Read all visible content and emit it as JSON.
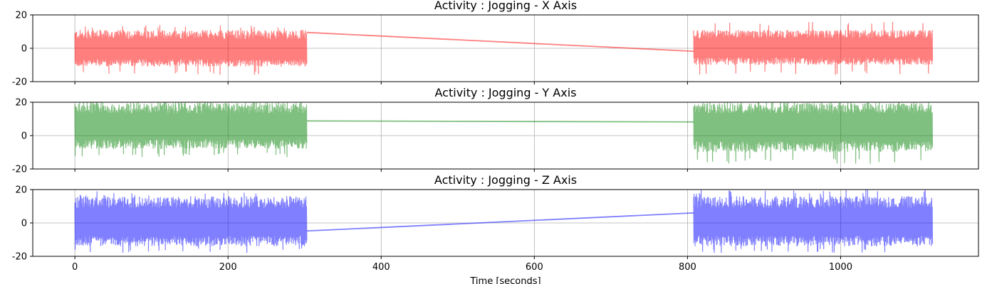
{
  "chart_data": [
    {
      "type": "line",
      "title": "Activity : Jogging - X Axis",
      "color": "#ff0000",
      "alpha": 0.5,
      "xlim": [
        -55,
        1180
      ],
      "ylim": [
        -20,
        20
      ],
      "yticks": [
        -20,
        0,
        20
      ],
      "xticks": [
        0,
        200,
        400,
        600,
        800,
        1000
      ],
      "grid": true,
      "segments": [
        {
          "x_start": 0,
          "x_end": 303,
          "center": -1,
          "upper_envelope": 11,
          "lower_envelope": -11,
          "upper_peak": 14,
          "lower_peak": -16
        },
        {
          "x_start": 808,
          "x_end": 1120,
          "center": 0,
          "upper_envelope": 11,
          "lower_envelope": -10,
          "upper_peak": 16,
          "lower_peak": -16
        }
      ],
      "connector": {
        "x": [
          303,
          808
        ],
        "y": [
          9.5,
          -1.8
        ]
      }
    },
    {
      "type": "line",
      "title": "Activity : Jogging - Y Axis",
      "color": "#008000",
      "alpha": 0.5,
      "xlim": [
        -55,
        1180
      ],
      "ylim": [
        -20,
        20
      ],
      "yticks": [
        -20,
        0,
        20
      ],
      "xticks": [
        0,
        200,
        400,
        600,
        800,
        1000
      ],
      "grid": true,
      "segments": [
        {
          "x_start": 0,
          "x_end": 303,
          "center": 5,
          "upper_envelope": 20,
          "lower_envelope": -8,
          "upper_peak": 20,
          "lower_peak": -13
        },
        {
          "x_start": 808,
          "x_end": 1120,
          "center": 5,
          "upper_envelope": 20,
          "lower_envelope": -10,
          "upper_peak": 20,
          "lower_peak": -17
        }
      ],
      "connector": {
        "x": [
          303,
          808
        ],
        "y": [
          8.8,
          8.2
        ]
      }
    },
    {
      "type": "line",
      "title": "Activity : Jogging - Z Axis",
      "color": "#0000ff",
      "alpha": 0.5,
      "xlim": [
        -55,
        1180
      ],
      "ylim": [
        -20,
        20
      ],
      "yticks": [
        -20,
        0,
        20
      ],
      "xticks": [
        0,
        200,
        400,
        600,
        800,
        1000
      ],
      "xlabel": "Time [seconds]",
      "grid": true,
      "segments": [
        {
          "x_start": 0,
          "x_end": 303,
          "center": 0,
          "upper_envelope": 16,
          "lower_envelope": -14,
          "upper_peak": 19,
          "lower_peak": -18
        },
        {
          "x_start": 808,
          "x_end": 1120,
          "center": 0,
          "upper_envelope": 16,
          "lower_envelope": -14,
          "upper_peak": 20,
          "lower_peak": -18
        }
      ],
      "connector": {
        "x": [
          303,
          808
        ],
        "y": [
          -4.8,
          6
        ]
      }
    }
  ]
}
